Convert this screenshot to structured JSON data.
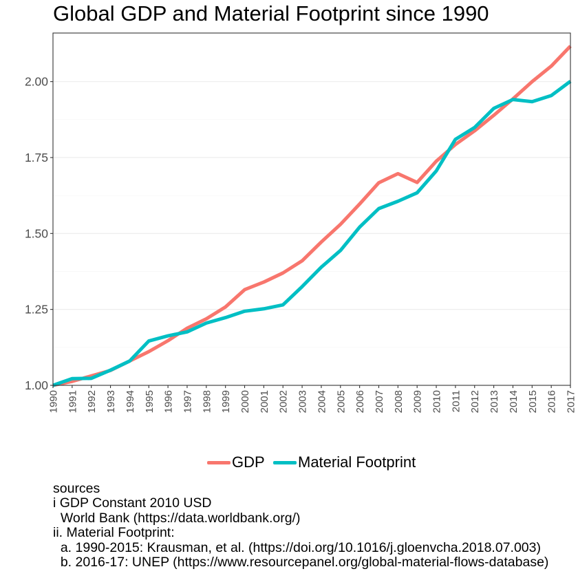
{
  "chart_data": {
    "type": "line",
    "title": "Global GDP and Material Footprint since 1990",
    "xlabel": "",
    "ylabel": "",
    "x": [
      1990,
      1991,
      1992,
      1993,
      1994,
      1995,
      1996,
      1997,
      1998,
      1999,
      2000,
      2001,
      2002,
      2003,
      2004,
      2005,
      2006,
      2007,
      2008,
      2009,
      2010,
      2011,
      2012,
      2013,
      2014,
      2015,
      2016,
      2017
    ],
    "xlim": [
      1990,
      2017
    ],
    "ylim": [
      1.0,
      2.16
    ],
    "yticks": [
      1.0,
      1.25,
      1.5,
      1.75,
      2.0
    ],
    "ytick_labels": [
      "1.00",
      "1.25",
      "1.50",
      "1.75",
      "2.00"
    ],
    "xtick_labels": [
      "1990",
      "1991",
      "1992",
      "1993",
      "1994",
      "1995",
      "1996",
      "1997",
      "1998",
      "1999",
      "2000",
      "2001",
      "2002",
      "2003",
      "2004",
      "2005",
      "2006",
      "2007",
      "2008",
      "2009",
      "2010",
      "2011",
      "2012",
      "2013",
      "2014",
      "2015",
      "2016",
      "2017"
    ],
    "grid": true,
    "legend_position": "bottom",
    "series": [
      {
        "name": "GDP",
        "color": "#f8766d",
        "values": [
          1.0,
          1.013,
          1.031,
          1.049,
          1.08,
          1.111,
          1.147,
          1.188,
          1.219,
          1.258,
          1.315,
          1.34,
          1.37,
          1.41,
          1.472,
          1.53,
          1.597,
          1.667,
          1.697,
          1.668,
          1.738,
          1.793,
          1.838,
          1.889,
          1.943,
          2.0,
          2.051,
          2.117
        ]
      },
      {
        "name": "Material Footprint",
        "color": "#00bfc4",
        "values": [
          1.0,
          1.022,
          1.023,
          1.05,
          1.08,
          1.146,
          1.163,
          1.176,
          1.205,
          1.223,
          1.244,
          1.252,
          1.265,
          1.325,
          1.389,
          1.444,
          1.521,
          1.582,
          1.606,
          1.634,
          1.706,
          1.81,
          1.849,
          1.912,
          1.941,
          1.934,
          1.954,
          2.001
        ]
      }
    ]
  },
  "sources": [
    "sources",
    "i GDP Constant 2010 USD",
    "  World Bank (https://data.worldbank.org/)",
    "ii. Material Footprint:",
    "  a. 1990-2015: Krausman, et al. (https://doi.org/10.1016/j.gloenvcha.2018.07.003)",
    "  b. 2016-17: UNEP (https://www.resourcepanel.org/global-material-flows-database)"
  ]
}
